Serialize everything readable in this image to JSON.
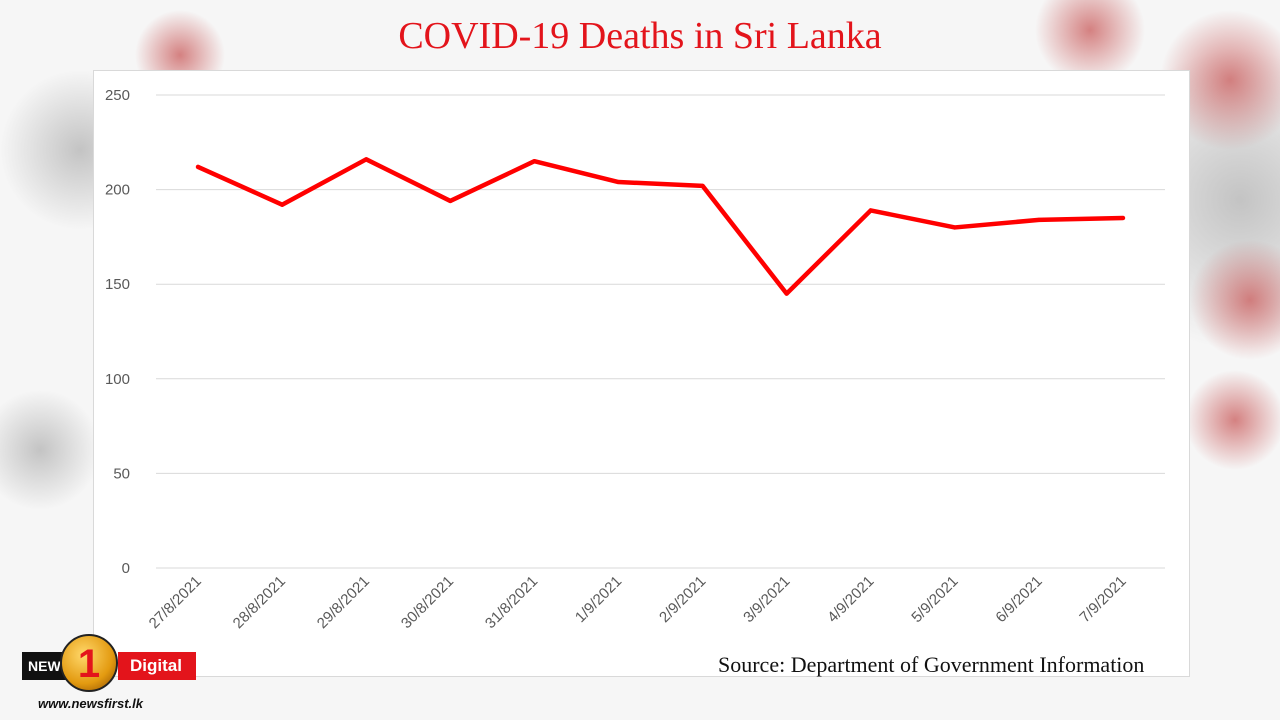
{
  "title": "COVID-19 Deaths in Sri Lanka",
  "source": "Source: Department of Government Information",
  "logo": {
    "left_text": "NEWS",
    "number": "1",
    "right_text": "Digital",
    "url": "www.newsfirst.lk"
  },
  "colors": {
    "title": "#e3141b",
    "line": "#ff0000",
    "grid": "#d9d9d9",
    "tick_text": "#595959"
  },
  "chart_data": {
    "type": "line",
    "title": "COVID-19 Deaths in Sri Lanka",
    "xlabel": "",
    "ylabel": "",
    "categories": [
      "27/8/2021",
      "28/8/2021",
      "29/8/2021",
      "30/8/2021",
      "31/8/2021",
      "1/9/2021",
      "2/9/2021",
      "3/9/2021",
      "4/9/2021",
      "5/9/2021",
      "6/9/2021",
      "7/9/2021"
    ],
    "series": [
      {
        "values": [
          212,
          192,
          216,
          194,
          215,
          204,
          202,
          145,
          189,
          180,
          184,
          185
        ]
      }
    ],
    "ylim": [
      0,
      250
    ],
    "yticks": [
      0,
      50,
      100,
      150,
      200,
      250
    ],
    "grid": true,
    "legend": "none"
  }
}
